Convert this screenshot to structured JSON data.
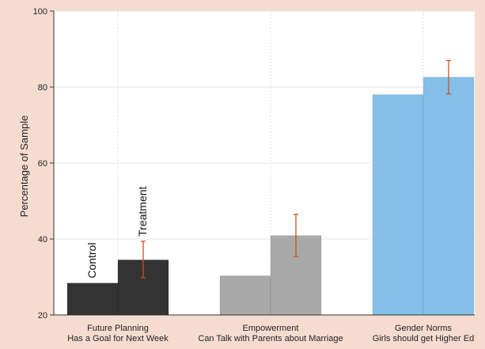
{
  "chart_data": {
    "type": "bar",
    "title": "",
    "xlabel": "",
    "ylabel": "Percentage of Sample",
    "ylim": [
      20,
      100
    ],
    "yticks": [
      20,
      40,
      60,
      80,
      100
    ],
    "grid": true,
    "groups": [
      {
        "label_line1": "Future Planning",
        "label_line2": "Has a Goal for Next Week",
        "color": "#333333",
        "bars": [
          {
            "name": "Control",
            "value": 28.4
          },
          {
            "name": "Treatment",
            "value": 34.5,
            "ci_low": 29.8,
            "ci_high": 39.4
          }
        ]
      },
      {
        "label_line1": "Empowerment",
        "label_line2": "Can Talk with Parents about Marriage",
        "color": "#a9a9a9",
        "bars": [
          {
            "name": "",
            "value": 30.3
          },
          {
            "name": "",
            "value": 40.9,
            "ci_low": 35.4,
            "ci_high": 46.5
          }
        ]
      },
      {
        "label_line1": "Gender Norms",
        "label_line2": "Girls should get Higher Ed",
        "color": "#83bfe8",
        "bars": [
          {
            "name": "",
            "value": 78.0
          },
          {
            "name": "",
            "value": 82.6,
            "ci_low": 78.2,
            "ci_high": 87.0
          }
        ]
      }
    ],
    "error_bar_color": "#c8521f"
  }
}
